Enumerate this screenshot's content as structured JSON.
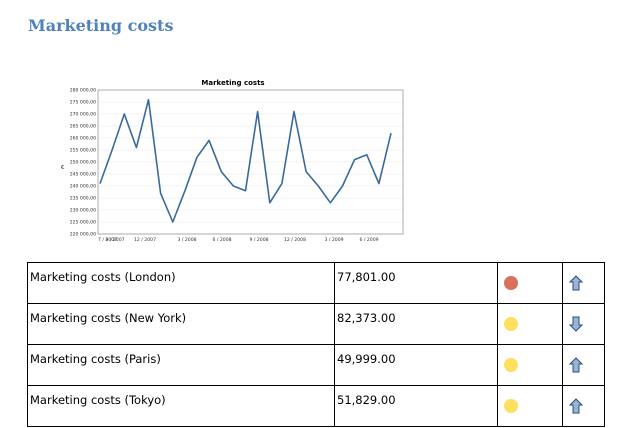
{
  "page": {
    "title": "Marketing costs"
  },
  "chart_data": {
    "type": "line",
    "title": "Marketing costs",
    "xlabel": "",
    "ylabel": "€",
    "x_tick_labels": [
      "7 / 2007",
      "9 / 2007",
      "12 / 2007",
      "3 / 2008",
      "6 / 2008",
      "9 / 2008",
      "12 / 2008",
      "3 / 2009",
      "6 / 2009"
    ],
    "y_tick_labels": [
      "220 000,00",
      "225 000,00",
      "230 000,00",
      "235 000,00",
      "240 000,00",
      "245 000,00",
      "250 000,00",
      "255 000,00",
      "260 000,00",
      "265 000,00",
      "270 000,00",
      "275 000,00",
      "280 000,00"
    ],
    "ylim": [
      220000,
      280000
    ],
    "grid": true,
    "series": [
      {
        "values": [
          241000,
          255000,
          270000,
          256000,
          276000,
          237000,
          225000,
          238000,
          252000,
          259000,
          246000,
          240000,
          238000,
          271000,
          233000,
          241000,
          271000,
          246000,
          240000,
          233000,
          240000,
          251000,
          253000,
          241000,
          262000
        ]
      }
    ],
    "color": "#3a6a9a"
  },
  "table": {
    "rows": [
      {
        "name": "Marketing costs (London)",
        "value": "77,801.00",
        "status_color": "#d9705c",
        "trend": "up"
      },
      {
        "name": "Marketing costs (New York)",
        "value": "82,373.00",
        "status_color": "#ffdf5f",
        "trend": "down"
      },
      {
        "name": "Marketing costs (Paris)",
        "value": "49,999.00",
        "status_color": "#ffdf5f",
        "trend": "up"
      },
      {
        "name": "Marketing costs (Tokyo)",
        "value": "51,829.00",
        "status_color": "#ffdf5f",
        "trend": "up"
      }
    ]
  }
}
